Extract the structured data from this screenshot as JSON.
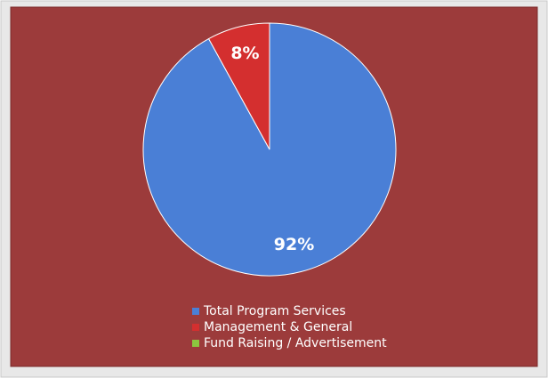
{
  "chart_data": {
    "type": "pie",
    "categories": [
      "Total Program Services",
      "Management & General",
      "Fund Raising / Advertisement"
    ],
    "values": [
      92,
      8,
      0
    ],
    "value_labels": [
      "92%",
      "8%",
      null
    ],
    "colors": [
      "#4a7fd6",
      "#d42f2f",
      "#8cc63f"
    ],
    "background": "#9c3b3b",
    "legend": "bottom"
  }
}
